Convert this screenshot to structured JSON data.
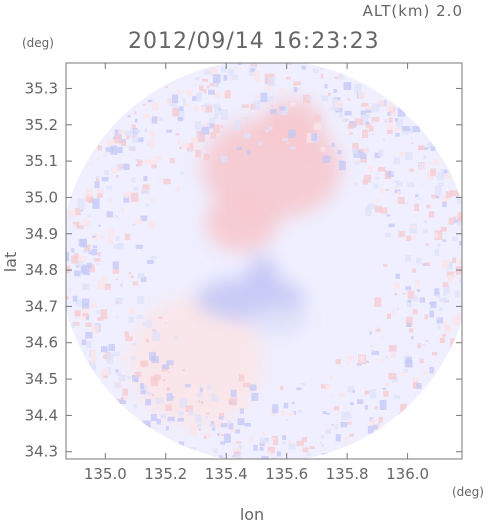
{
  "header": {
    "altitude_label": "ALT(km) 2.0",
    "timestamp": "2012/09/14 16:23:23"
  },
  "axes": {
    "x_title": "lon",
    "y_title": "lat",
    "x_unit": "(deg)",
    "y_unit": "(deg)"
  },
  "chart_data": {
    "type": "heatmap",
    "description_key": "doppler-radar-field",
    "xlabel": "lon",
    "ylabel": "lat",
    "xlim": [
      134.87,
      136.18
    ],
    "ylim": [
      34.28,
      35.37
    ],
    "x_ticks": [
      {
        "value": 135.0,
        "label": "135.0"
      },
      {
        "value": 135.2,
        "label": "135.2"
      },
      {
        "value": 135.4,
        "label": "135.4"
      },
      {
        "value": 135.6,
        "label": "135.6"
      },
      {
        "value": 135.8,
        "label": "135.8"
      },
      {
        "value": 136.0,
        "label": "136.0"
      }
    ],
    "y_ticks": [
      {
        "value": 34.3,
        "label": "34.3"
      },
      {
        "value": 34.4,
        "label": "34.4"
      },
      {
        "value": 34.5,
        "label": "34.5"
      },
      {
        "value": 34.6,
        "label": "34.6"
      },
      {
        "value": 34.7,
        "label": "34.7"
      },
      {
        "value": 34.8,
        "label": "34.8"
      },
      {
        "value": 34.9,
        "label": "34.9"
      },
      {
        "value": 35.0,
        "label": "35.0"
      },
      {
        "value": 35.1,
        "label": "35.1"
      },
      {
        "value": 35.2,
        "label": "35.2"
      },
      {
        "value": 35.3,
        "label": "35.3"
      }
    ],
    "coverage": {
      "center_lon": 135.53,
      "center_lat": 34.825,
      "radius_lon": 0.68,
      "radius_lat": 0.555
    },
    "colors": {
      "background": "#efefff",
      "positive": "#f7c9cf",
      "positive_light": "#fbe6e8",
      "negative": "#c4c8f5",
      "negative_light": "#dfe1fa",
      "frame": "#777777"
    },
    "regions": [
      {
        "kind": "positive",
        "lon": 135.55,
        "lat": 35.08,
        "rlon": 0.23,
        "rlat": 0.14
      },
      {
        "kind": "positive",
        "lon": 135.45,
        "lat": 34.93,
        "rlon": 0.12,
        "rlat": 0.08
      },
      {
        "kind": "positive",
        "lon": 135.62,
        "lat": 35.2,
        "rlon": 0.1,
        "rlat": 0.07
      },
      {
        "kind": "positive_light",
        "lon": 135.3,
        "lat": 34.55,
        "rlon": 0.22,
        "rlat": 0.18
      },
      {
        "kind": "negative",
        "lon": 135.48,
        "lat": 34.72,
        "rlon": 0.18,
        "rlat": 0.06
      },
      {
        "kind": "negative",
        "lon": 135.52,
        "lat": 34.79,
        "rlon": 0.05,
        "rlat": 0.05
      },
      {
        "kind": "negative_light",
        "lon": 135.57,
        "lat": 34.66,
        "rlon": 0.1,
        "rlat": 0.04
      }
    ]
  }
}
